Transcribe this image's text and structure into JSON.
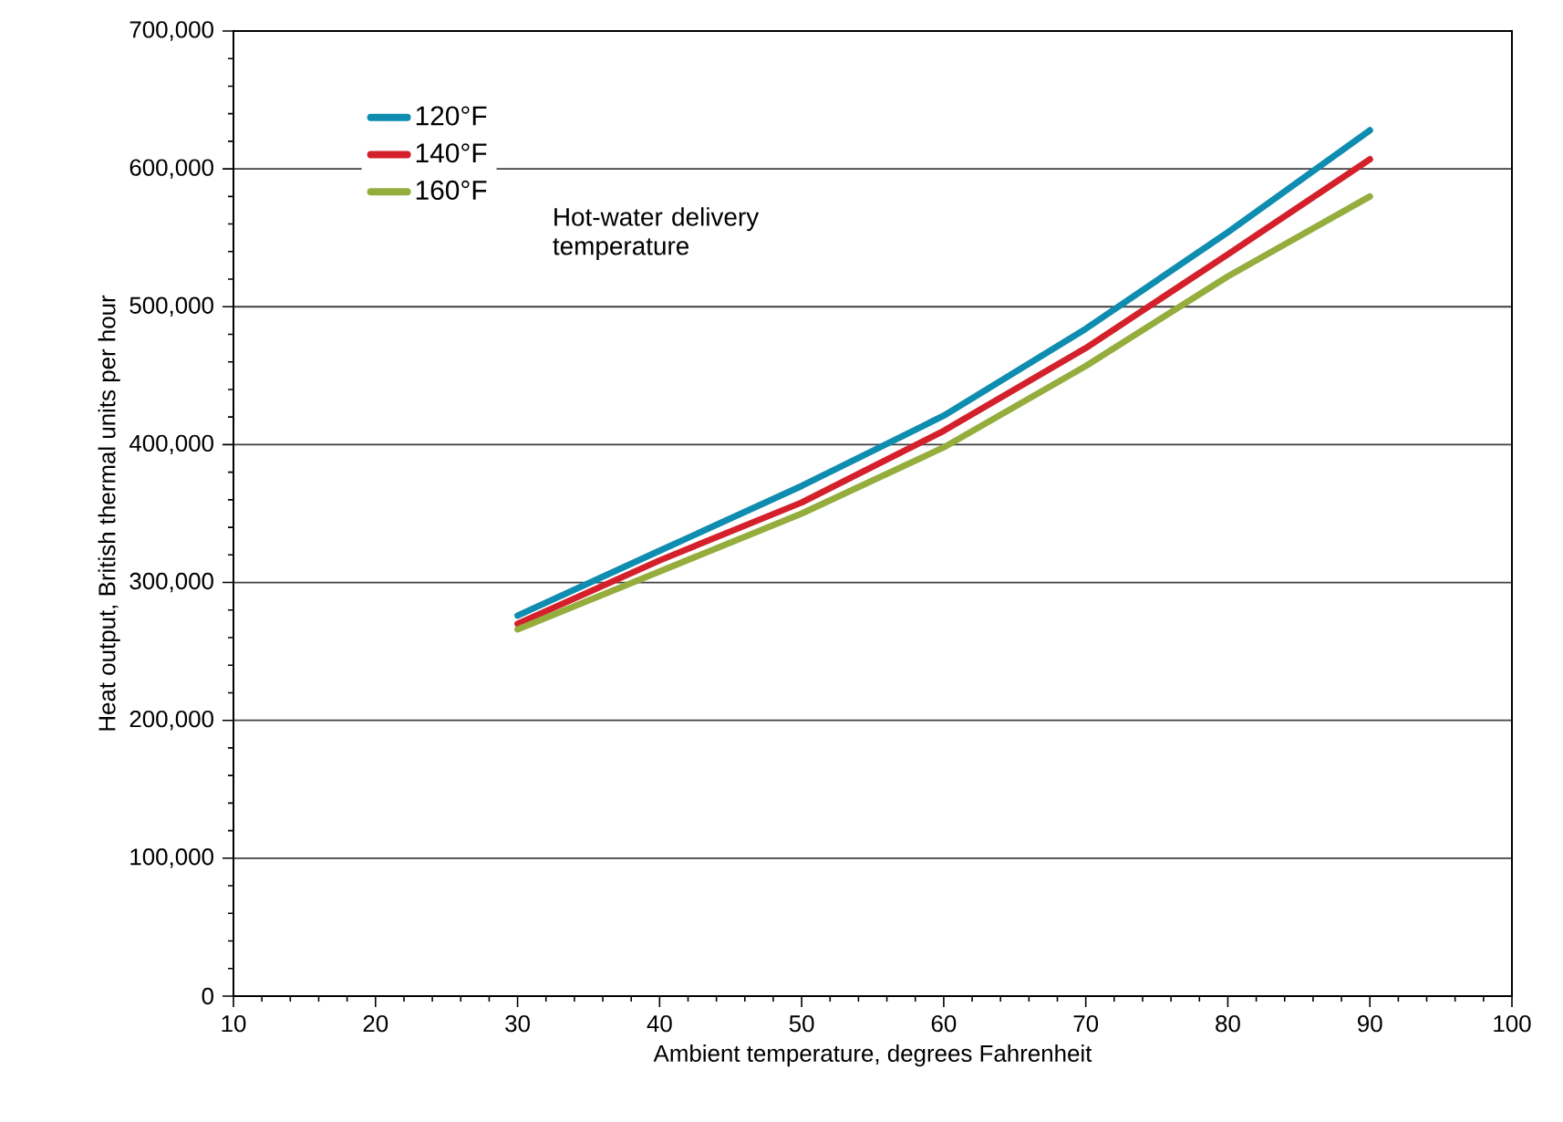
{
  "chart_data": {
    "type": "line",
    "xlabel": "Ambient temperature, degrees Fahrenheit",
    "ylabel": "Heat output, British thermal units per hour",
    "legend_title": "Hot-water delivery temperature",
    "x": [
      30,
      40,
      50,
      60,
      70,
      80,
      90
    ],
    "series": [
      {
        "name": "120°F",
        "color": "#0e8db0",
        "values": [
          276000,
          323000,
          370000,
          421000,
          484000,
          554000,
          628000
        ]
      },
      {
        "name": "140°F",
        "color": "#d4202a",
        "values": [
          270000,
          316000,
          358000,
          410000,
          470000,
          538000,
          607000
        ]
      },
      {
        "name": "160°F",
        "color": "#94ad3c",
        "values": [
          266000,
          308000,
          350000,
          398000,
          457000,
          522000,
          580000
        ]
      }
    ],
    "xlim": [
      10,
      100
    ],
    "xticks": [
      10,
      20,
      30,
      40,
      50,
      60,
      70,
      80,
      90,
      100
    ],
    "ylim": [
      0,
      700000
    ],
    "yticks": [
      {
        "value": 0,
        "label": "0"
      },
      {
        "value": 100000,
        "label": "100,000"
      },
      {
        "value": 200000,
        "label": "200,000"
      },
      {
        "value": 300000,
        "label": "300,000"
      },
      {
        "value": 400000,
        "label": "400,000"
      },
      {
        "value": 500000,
        "label": "500,000"
      },
      {
        "value": 600000,
        "label": "600,000"
      },
      {
        "value": 700000,
        "label": "700,000"
      }
    ],
    "grid": "y",
    "legend": "top left",
    "marker": "none",
    "line_style": "solid"
  }
}
